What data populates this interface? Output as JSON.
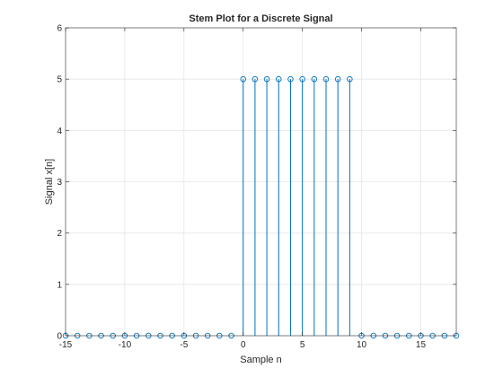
{
  "chart_data": {
    "type": "stem",
    "title": "Stem Plot for a Discrete Signal",
    "xlabel": "Sample n",
    "ylabel": "Signal x[n]",
    "xlim": [
      -15,
      18
    ],
    "ylim": [
      0,
      6
    ],
    "xticks": [
      -15,
      -10,
      -5,
      0,
      5,
      10,
      15
    ],
    "yticks": [
      0,
      1,
      2,
      3,
      4,
      5,
      6
    ],
    "grid": true,
    "marker": "open-circle",
    "color": "#0072BD",
    "x": [
      -15,
      -14,
      -13,
      -12,
      -11,
      -10,
      -9,
      -8,
      -7,
      -6,
      -5,
      -4,
      -3,
      -2,
      -1,
      0,
      1,
      2,
      3,
      4,
      5,
      6,
      7,
      8,
      9,
      10,
      11,
      12,
      13,
      14,
      15,
      16,
      17,
      18
    ],
    "y": [
      0,
      0,
      0,
      0,
      0,
      0,
      0,
      0,
      0,
      0,
      0,
      0,
      0,
      0,
      0,
      5,
      5,
      5,
      5,
      5,
      5,
      5,
      5,
      5,
      5,
      0,
      0,
      0,
      0,
      0,
      0,
      0,
      0,
      0
    ]
  }
}
